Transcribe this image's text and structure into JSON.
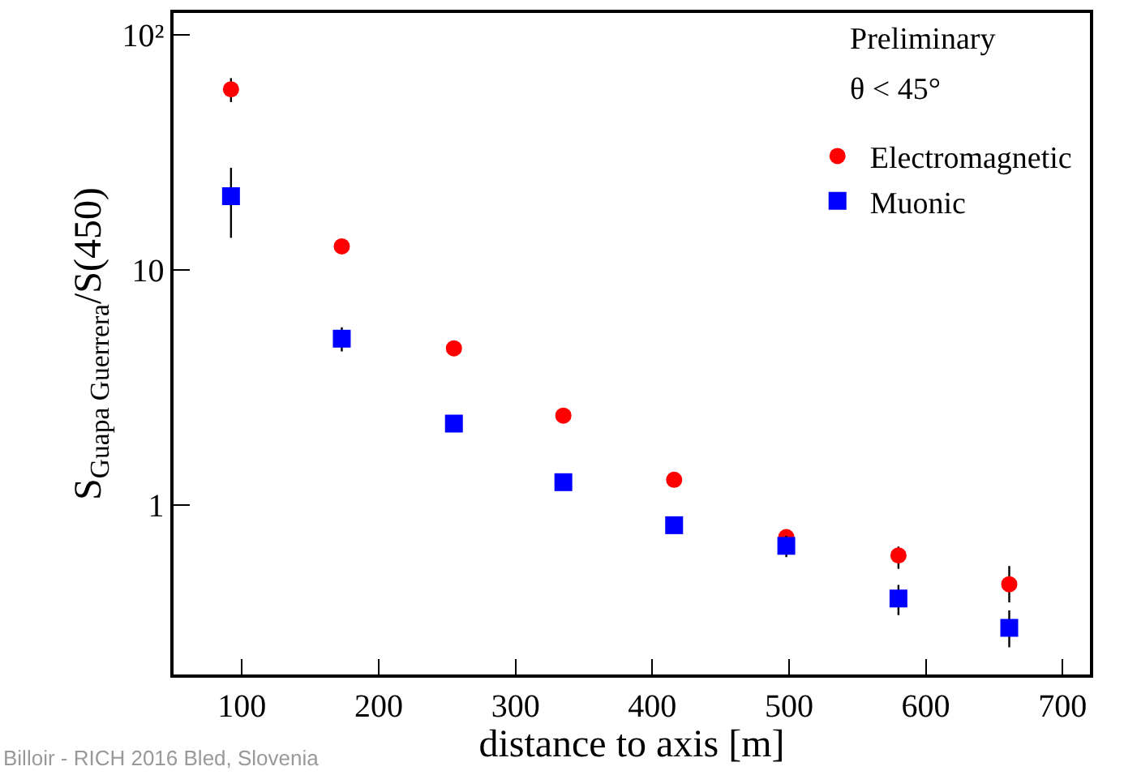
{
  "chart_data": {
    "type": "scatter",
    "xlabel": "distance to axis [m]",
    "ylabel": "S$_{Guapa Guerrera}$/S(450)",
    "annotations": [
      "Preliminary",
      "θ < 45°",
      "Billoir - RICH 2016 Bled, Slovenia"
    ],
    "x": [
      92,
      173,
      255,
      335,
      416,
      498,
      580,
      661
    ],
    "series": [
      {
        "name": "Electromagnetic",
        "color": "#ff0000",
        "marker": "circle",
        "values": [
          58.7,
          12.6,
          4.64,
          2.4,
          1.28,
          0.73,
          0.61,
          0.46
        ],
        "errors": [
          [
            51.8,
            65.5
          ],
          null,
          null,
          null,
          null,
          null,
          [
            0.535,
            0.665
          ],
          [
            0.385,
            0.55
          ]
        ]
      },
      {
        "name": "Muonic",
        "color": "#0000ff",
        "marker": "square",
        "values": [
          20.6,
          5.1,
          2.22,
          1.25,
          0.82,
          0.67,
          0.4,
          0.3
        ],
        "errors": [
          [
            13.7,
            27.2
          ],
          [
            4.5,
            5.7
          ],
          null,
          null,
          null,
          [
            0.6,
            0.74
          ],
          [
            0.34,
            0.457
          ],
          [
            0.248,
            0.356
          ]
        ]
      }
    ],
    "log": "y",
    "xlim": [
      50,
      720
    ],
    "xticks": [
      100,
      200,
      300,
      400,
      500,
      600,
      700
    ],
    "ylim": [
      0.19,
      124
    ],
    "yticks": [
      1,
      10,
      {
        "value": 100,
        "label": "10²"
      }
    ],
    "legend": "top right"
  }
}
